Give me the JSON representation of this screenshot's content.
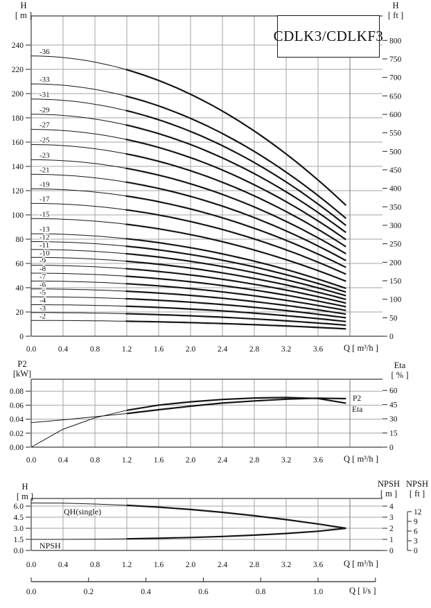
{
  "figure": {
    "title_box": "CDLK3/CDLKF3",
    "background": "#ffffff",
    "curve_color": "#151515",
    "grid_color": "#a3a3a3",
    "frame_color": "#3a3a3a",
    "text_color": "#111111"
  },
  "chart_data": [
    {
      "type": "line",
      "name": "qh-multistage",
      "title": "CDLK3/CDLKF3",
      "xlabel": "Q [ m³/h ]",
      "ylabel_left": {
        "title": "H",
        "unit": "[ m ]"
      },
      "ylabel_right": {
        "title": "H",
        "unit": "[ ft ]"
      },
      "xlim": [
        0.0,
        4.0
      ],
      "ylim_left_m": [
        0,
        264
      ],
      "ylim_right_ft": [
        0,
        866
      ],
      "grid": true,
      "x_ticks": [
        "0.0",
        "0.4",
        "0.8",
        "1.2",
        "1.6",
        "2.0",
        "2.4",
        "2.8",
        "3.2",
        "3.6"
      ],
      "y_ticks_left_m": [
        0,
        20,
        40,
        60,
        80,
        100,
        120,
        140,
        160,
        180,
        200,
        220,
        240
      ],
      "y_ticks_right_ft": [
        0,
        50,
        100,
        150,
        200,
        250,
        300,
        350,
        400,
        450,
        500,
        550,
        600,
        650,
        700,
        750,
        800
      ],
      "q_end": 3.95,
      "bold_from_q": 1.2,
      "head_droop_ratio": 0.533,
      "series": [
        {
          "label": "-36",
          "h0_m": 231.0,
          "h_end_m": 107.9
        },
        {
          "label": "-33",
          "h0_m": 208.0,
          "h_end_m": 97.1
        },
        {
          "label": "-31",
          "h0_m": 195.5,
          "h_end_m": 91.3
        },
        {
          "label": "-29",
          "h0_m": 183.0,
          "h_end_m": 85.5
        },
        {
          "label": "-27",
          "h0_m": 170.5,
          "h_end_m": 79.6
        },
        {
          "label": "-25",
          "h0_m": 158.0,
          "h_end_m": 73.8
        },
        {
          "label": "-23",
          "h0_m": 145.5,
          "h_end_m": 67.9
        },
        {
          "label": "-21",
          "h0_m": 133.5,
          "h_end_m": 62.3
        },
        {
          "label": "-19",
          "h0_m": 121.5,
          "h_end_m": 56.7
        },
        {
          "label": "-17",
          "h0_m": 109.5,
          "h_end_m": 51.1
        },
        {
          "label": "-15",
          "h0_m": 97.0,
          "h_end_m": 45.3
        },
        {
          "label": "-13",
          "h0_m": 84.5,
          "h_end_m": 39.5
        },
        {
          "label": "-12",
          "h0_m": 78.0,
          "h_end_m": 36.4
        },
        {
          "label": "-11",
          "h0_m": 71.5,
          "h_end_m": 33.4
        },
        {
          "label": "-10",
          "h0_m": 65.0,
          "h_end_m": 30.4
        },
        {
          "label": "-9",
          "h0_m": 58.5,
          "h_end_m": 27.3
        },
        {
          "label": "-8",
          "h0_m": 52.0,
          "h_end_m": 24.3
        },
        {
          "label": "-7",
          "h0_m": 45.5,
          "h_end_m": 21.2
        },
        {
          "label": "-6",
          "h0_m": 39.0,
          "h_end_m": 18.2
        },
        {
          "label": "-5",
          "h0_m": 32.5,
          "h_end_m": 15.2
        },
        {
          "label": "-4",
          "h0_m": 26.0,
          "h_end_m": 12.1
        },
        {
          "label": "-3",
          "h0_m": 19.5,
          "h_end_m": 9.1
        },
        {
          "label": "-2",
          "h0_m": 13.0,
          "h_end_m": 6.1
        }
      ]
    },
    {
      "type": "line",
      "name": "power-efficiency",
      "xlabel": "Q [ m³/h ]",
      "ylabel_left": {
        "title": "P2",
        "unit": "[kW]"
      },
      "ylabel_right": {
        "title": "Eta",
        "unit": "[ % ]"
      },
      "xlim": [
        0.0,
        4.0
      ],
      "ylim_left_kW": [
        0,
        0.097
      ],
      "ylim_right_pct": [
        0,
        71
      ],
      "grid": true,
      "x_ticks": [
        "0.0",
        "0.4",
        "0.8",
        "1.2",
        "1.6",
        "2.0",
        "2.4",
        "2.8",
        "3.2",
        "3.6"
      ],
      "y_ticks_left_kW": [
        "0.00",
        "0.02",
        "0.04",
        "0.06",
        "0.08"
      ],
      "y_ticks_right_pct": [
        0,
        15,
        30,
        45,
        60
      ],
      "bold_from_q": 1.2,
      "x": [
        0.0,
        0.4,
        0.8,
        1.2,
        1.6,
        2.0,
        2.4,
        2.8,
        3.2,
        3.6,
        3.95
      ],
      "series": [
        {
          "name": "P2",
          "unit": "kW",
          "values": [
            0.035,
            0.039,
            0.0435,
            0.048,
            0.0535,
            0.0585,
            0.063,
            0.066,
            0.0685,
            0.07,
            0.0693
          ]
        },
        {
          "name": "Eta",
          "unit": "%",
          "values": [
            0,
            19,
            31,
            39,
            44.5,
            48,
            50.5,
            52,
            52.5,
            51.5,
            46.5
          ]
        }
      ]
    },
    {
      "type": "line",
      "name": "single-stage-and-npsh",
      "xlabel": "Q [ m³/h ]",
      "ylabel_left": {
        "title": "H",
        "unit": "[ m ]"
      },
      "ylabel_right_m": {
        "title": "NPSH",
        "unit": "[ m ]"
      },
      "ylabel_right_ft": {
        "title": "NPSH",
        "unit": "[ ft ]"
      },
      "xlim": [
        0.0,
        4.0
      ],
      "ylim_left_m": [
        0,
        7.0
      ],
      "ylim_right_npsh_m": [
        0,
        4.7
      ],
      "grid": true,
      "x_ticks": [
        "0.0",
        "0.4",
        "0.8",
        "1.2",
        "1.6",
        "2.0",
        "2.4",
        "2.8",
        "3.2",
        "3.6"
      ],
      "y_ticks_left_m": [
        "0.0",
        "1.5",
        "3.0",
        "4.5",
        "6.0"
      ],
      "y_ticks_right_npsh_m": [
        0,
        1,
        2,
        3,
        4
      ],
      "y_ticks_right_npsh_ft": [
        0,
        3,
        6,
        9,
        12
      ],
      "bold_from_q": 1.2,
      "x": [
        0.0,
        0.4,
        0.8,
        1.2,
        1.6,
        2.0,
        2.4,
        2.8,
        3.2,
        3.6,
        3.95
      ],
      "series": [
        {
          "name": "QH(single)",
          "unit": "m",
          "values": [
            6.42,
            6.39,
            6.28,
            6.1,
            5.86,
            5.54,
            5.16,
            4.7,
            4.17,
            3.58,
            3.0
          ]
        },
        {
          "name": "NPSH",
          "unit": "m NPSH",
          "values": [
            1.0,
            1.0,
            1.02,
            1.05,
            1.1,
            1.17,
            1.26,
            1.38,
            1.53,
            1.73,
            2.0
          ]
        }
      ],
      "x_axis2": {
        "label": "Q [ l/s ]",
        "ticks": [
          "0.0",
          "0.2",
          "0.4",
          "0.6",
          "0.8",
          "1.0"
        ],
        "tick_step_ls": 0.2,
        "axis_end_ls": 1.2
      }
    }
  ]
}
